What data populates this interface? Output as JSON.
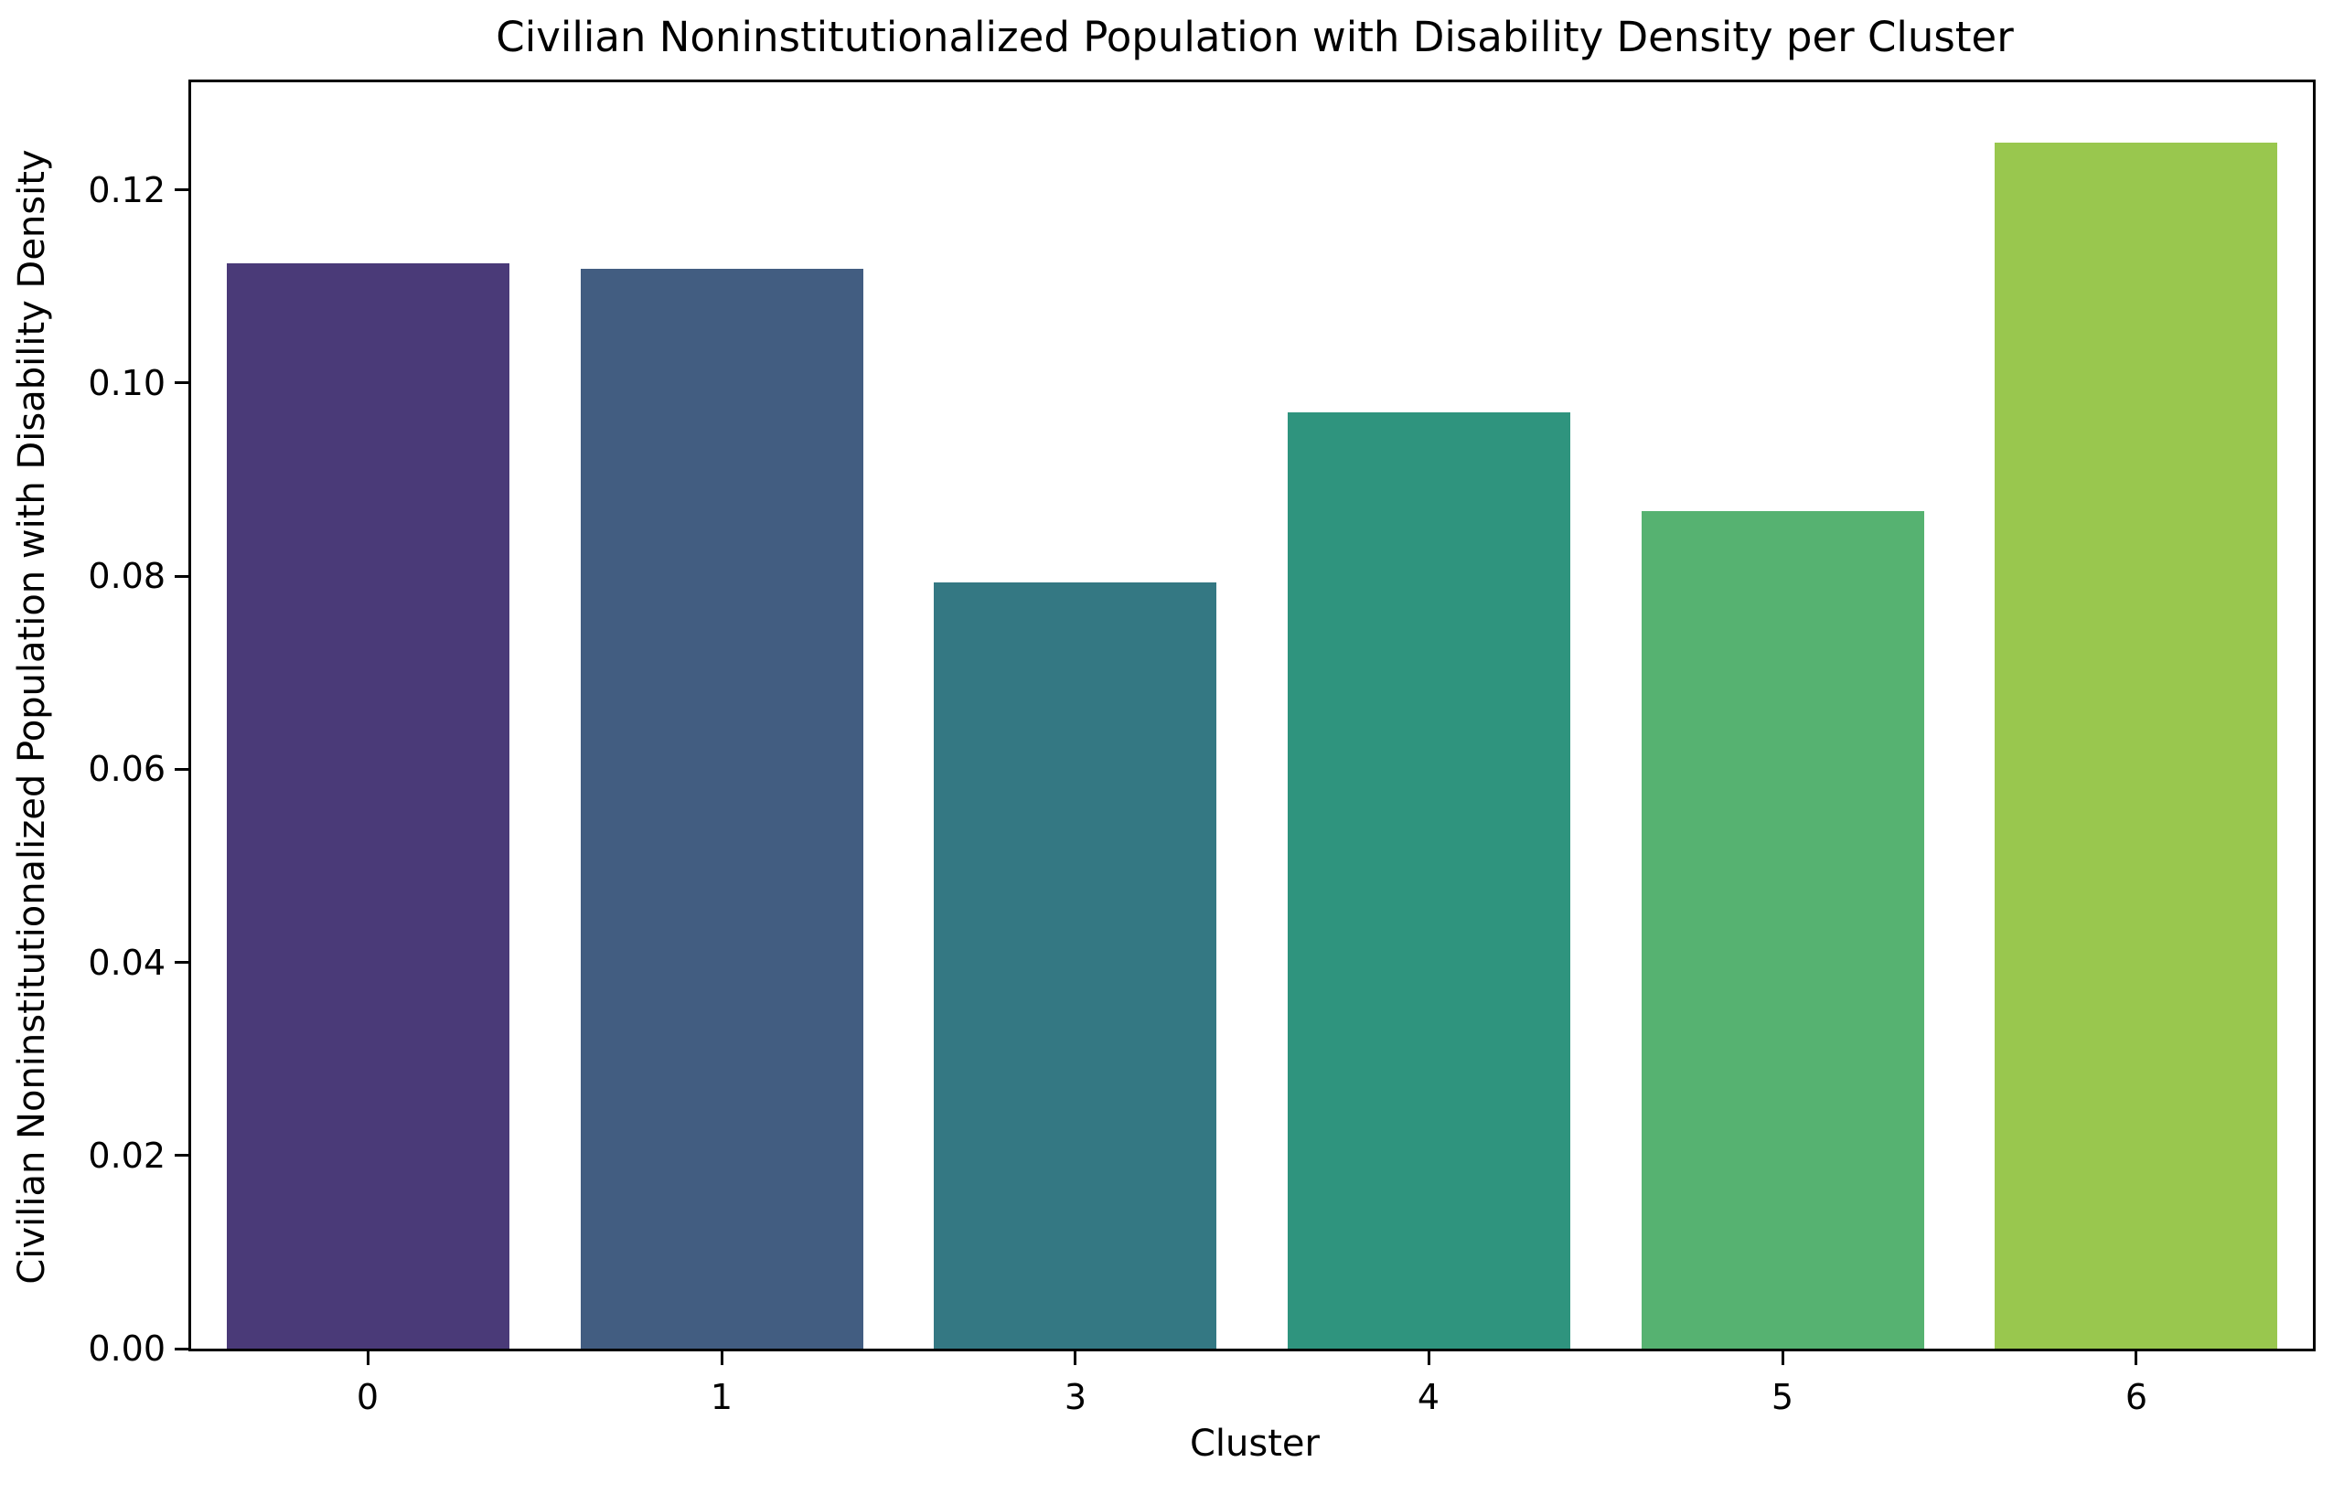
{
  "chart_data": {
    "type": "bar",
    "title": "Civilian Noninstitutionalized Population with Disability Density per Cluster",
    "xlabel": "Cluster",
    "ylabel": "Civilian Noninstitutionalized Population with Disability Density",
    "categories": [
      "0",
      "1",
      "3",
      "4",
      "5",
      "6"
    ],
    "values": [
      0.1124,
      0.1118,
      0.0794,
      0.097,
      0.0867,
      0.1249
    ],
    "bar_colors": [
      "#4a3a78",
      "#425d81",
      "#347883",
      "#2f947e",
      "#56b271",
      "#99c74e"
    ],
    "ylim": [
      0,
      0.13115
    ],
    "yticks": [
      0.0,
      0.02,
      0.04,
      0.06,
      0.08,
      0.1,
      0.12
    ],
    "ytick_labels": [
      "0.00",
      "0.02",
      "0.04",
      "0.06",
      "0.08",
      "0.10",
      "0.12"
    ],
    "grid": false,
    "legend": null,
    "palette": "viridis",
    "background_color": "#ffffff",
    "spine_color": "#000000"
  }
}
